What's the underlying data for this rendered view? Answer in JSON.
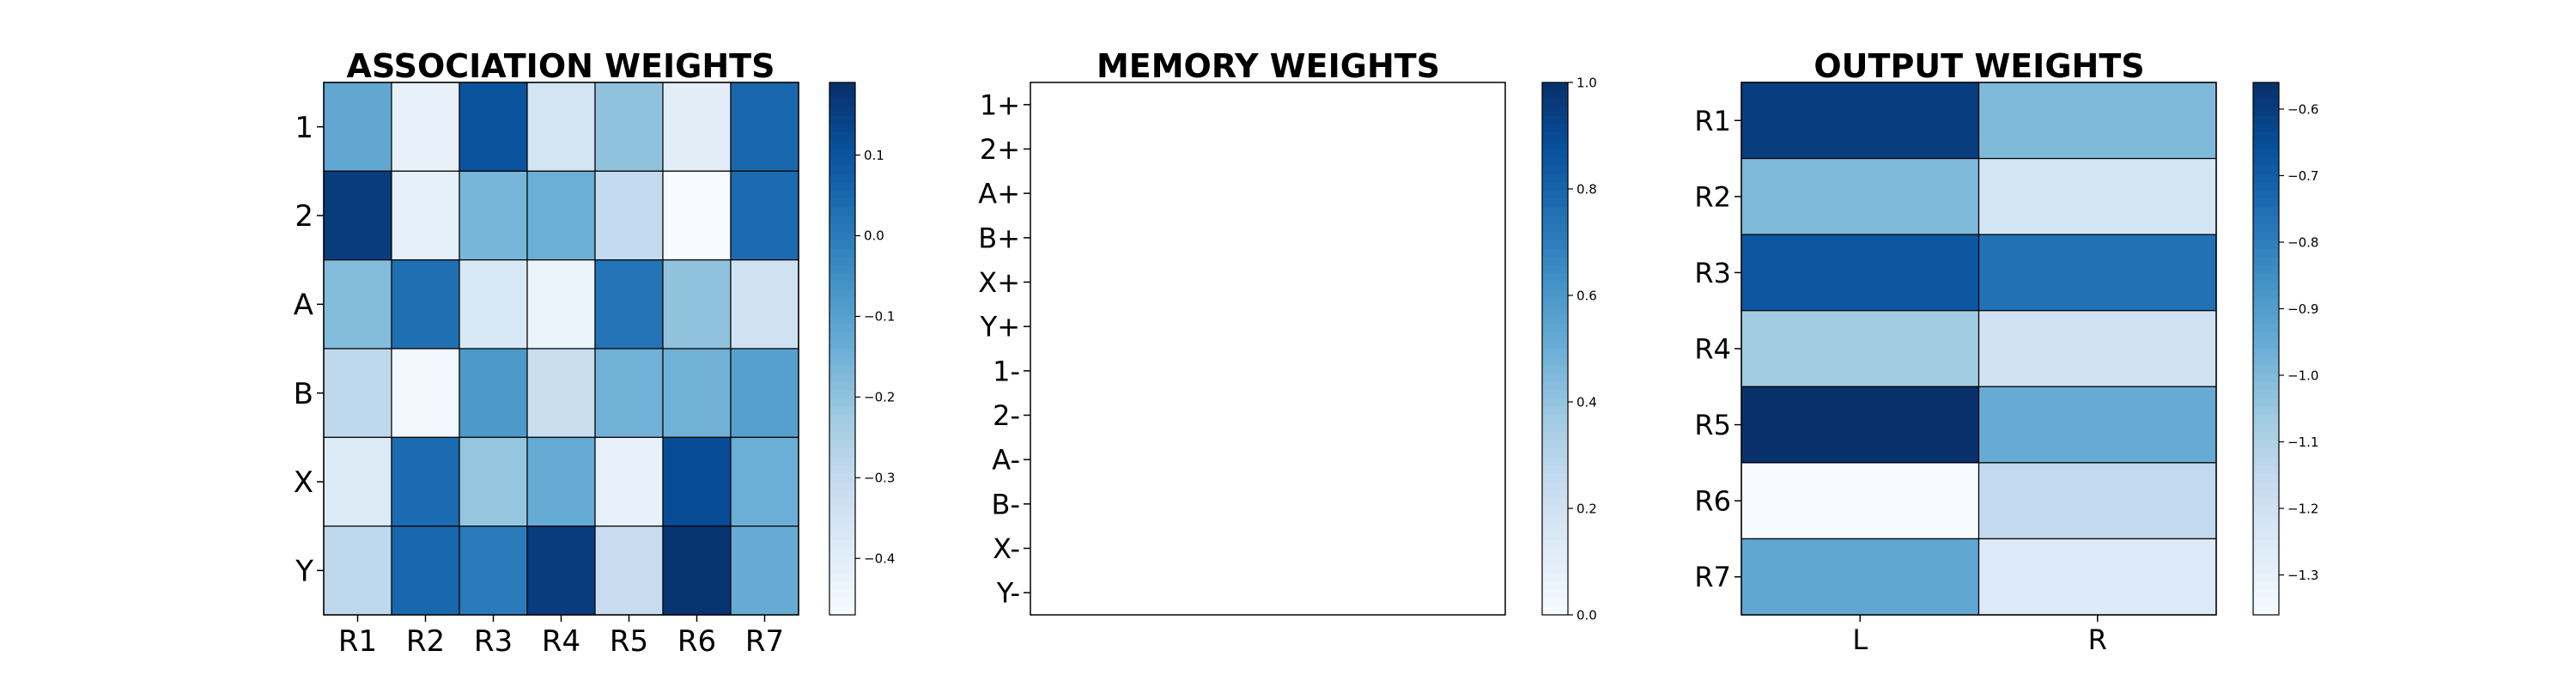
{
  "chart_data": [
    {
      "type": "heatmap",
      "title": "ASSOCIATION WEIGHTS",
      "xlabel": "",
      "ylabel": "",
      "x_categories": [
        "R1",
        "R2",
        "R3",
        "R4",
        "R5",
        "R6",
        "R7"
      ],
      "y_categories": [
        "1",
        "2",
        "A",
        "B",
        "X",
        "Y"
      ],
      "values": [
        [
          -0.12,
          -0.42,
          0.1,
          -0.35,
          -0.2,
          -0.4,
          0.05
        ],
        [
          0.16,
          -0.41,
          -0.16,
          -0.14,
          -0.3,
          -0.47,
          0.04
        ],
        [
          -0.18,
          0.03,
          -0.37,
          -0.43,
          0.02,
          -0.2,
          -0.34
        ],
        [
          -0.29,
          -0.45,
          -0.08,
          -0.32,
          -0.15,
          -0.15,
          -0.1
        ],
        [
          -0.38,
          0.04,
          -0.21,
          -0.13,
          -0.42,
          0.12,
          -0.14
        ],
        [
          -0.29,
          0.05,
          0.0,
          0.16,
          -0.31,
          0.18,
          -0.13
        ]
      ],
      "colormap": "Blues",
      "colorbar": {
        "vmin": -0.47,
        "vmax": 0.19,
        "ticks": [
          0.1,
          0.0,
          -0.1,
          -0.2,
          -0.3,
          -0.4
        ],
        "tick_labels": [
          "0.1",
          "0.0",
          "−0.1",
          "−0.2",
          "−0.3",
          "−0.4"
        ]
      }
    },
    {
      "type": "heatmap",
      "title": "MEMORY WEIGHTS",
      "xlabel": "",
      "ylabel": "",
      "x_categories": [],
      "y_categories": [
        "1+",
        "2+",
        "A+",
        "B+",
        "X+",
        "Y+",
        "1-",
        "2-",
        "A-",
        "B-",
        "X-",
        "Y-"
      ],
      "values": [],
      "colormap": "Blues",
      "colorbar": {
        "vmin": 0.0,
        "vmax": 1.0,
        "ticks": [
          1.0,
          0.8,
          0.6,
          0.4,
          0.2,
          0.0
        ],
        "tick_labels": [
          "1.0",
          "0.8",
          "0.6",
          "0.4",
          "0.2",
          "0.0"
        ]
      }
    },
    {
      "type": "heatmap",
      "title": "OUTPUT WEIGHTS",
      "xlabel": "",
      "ylabel": "",
      "x_categories": [
        "L",
        "R"
      ],
      "y_categories": [
        "R1",
        "R2",
        "R3",
        "R4",
        "R5",
        "R6",
        "R7"
      ],
      "values": [
        [
          -0.6,
          -1.0
        ],
        [
          -1.0,
          -1.22
        ],
        [
          -0.68,
          -0.76
        ],
        [
          -1.07,
          -1.2
        ],
        [
          -0.56,
          -0.95
        ],
        [
          -1.36,
          -1.15
        ],
        [
          -0.93,
          -1.25
        ]
      ],
      "colormap": "Blues",
      "colorbar": {
        "vmin": -1.36,
        "vmax": -0.56,
        "ticks": [
          -0.6,
          -0.7,
          -0.8,
          -0.9,
          -1.0,
          -1.1,
          -1.2,
          -1.3
        ],
        "tick_labels": [
          "−0.6",
          "−0.7",
          "−0.8",
          "−0.9",
          "−1.0",
          "−1.1",
          "−1.2",
          "−1.3"
        ]
      }
    }
  ]
}
